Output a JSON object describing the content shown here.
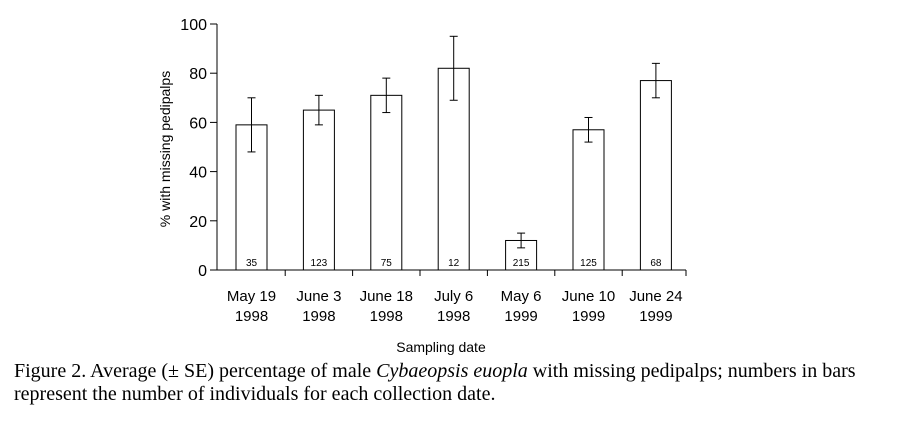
{
  "chart_data": {
    "type": "bar",
    "categories": [
      [
        "May 19",
        "1998"
      ],
      [
        "June 3",
        "1998"
      ],
      [
        "June 18",
        "1998"
      ],
      [
        "July 6",
        "1998"
      ],
      [
        "May 6",
        "1999"
      ],
      [
        "June 10",
        "1999"
      ],
      [
        "June 24",
        "1999"
      ]
    ],
    "values": [
      59,
      65,
      71,
      82,
      12,
      57,
      77
    ],
    "errors": [
      11,
      6,
      7,
      13,
      3,
      5,
      7
    ],
    "bar_labels": [
      "35",
      "123",
      "75",
      "12",
      "215",
      "125",
      "68"
    ],
    "xlabel": "Sampling date",
    "ylabel": "% with missing pedipalps",
    "ylim": [
      0,
      100
    ],
    "yticks": [
      0,
      20,
      40,
      60,
      80,
      100
    ],
    "grid": false,
    "colors": {
      "bar_fill": "#ffffff",
      "bar_stroke": "#000000"
    }
  },
  "caption": {
    "prefix": "Figure 2.  Average (± SE) percentage of male ",
    "species": "Cybaeopsis euopla",
    "suffix": " with missing pedipalps; numbers in bars represent the number of individuals for each collection date."
  }
}
